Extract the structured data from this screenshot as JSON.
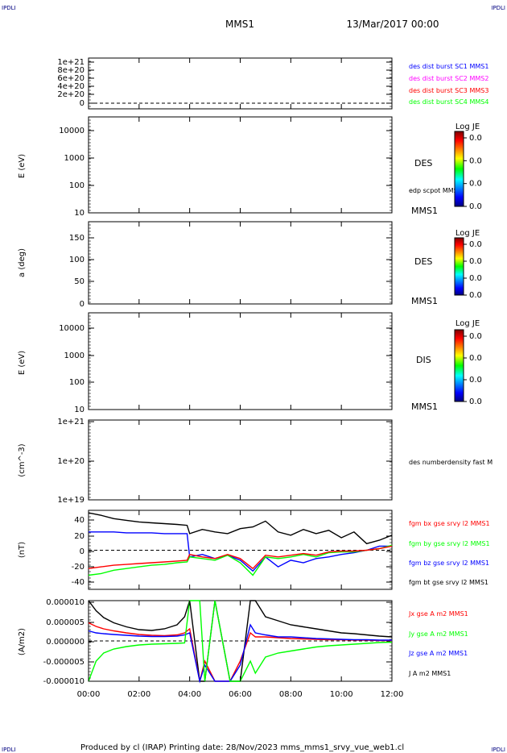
{
  "header": {
    "corner_tl": "IPDLI",
    "corner_tr": "IPDLI",
    "corner_bl": "IPDLI",
    "corner_br": "IPDLI",
    "spacecraft": "MMS1",
    "date": "13/Mar/2017 00:00"
  },
  "footer": {
    "text": "Produced by cl (IRAP)   Printing date: 28/Nov/2023   mms_mms1_srvy_vue_web1.cl"
  },
  "colors": {
    "black": "#000000",
    "blue": "#0000ff",
    "magenta": "#ff00ff",
    "red": "#ff0000",
    "green": "#00ff00",
    "navy": "#000080"
  },
  "colorbars": [
    {
      "title": "Log JE",
      "ticks": [
        "0.0",
        "0.0",
        "0.0",
        "0.0"
      ]
    },
    {
      "title": "Log JE",
      "ticks": [
        "0.0",
        "0.0",
        "0.0",
        "0.0"
      ]
    },
    {
      "title": "Log JE",
      "ticks": [
        "0.0",
        "0.0",
        "0.0",
        "0.0"
      ]
    }
  ],
  "chart_data": {
    "type": "line",
    "x_ticks": [
      "00:00",
      "02:00",
      "04:00",
      "06:00",
      "08:00",
      "10:00",
      "12:00"
    ],
    "x_range_hours": [
      0,
      12
    ],
    "panels": [
      {
        "ylabel": "",
        "y_ticks": [
          "1e+21",
          "8e+20",
          "6e+20",
          "4e+20",
          "2e+20",
          "0"
        ],
        "reference_line": 0,
        "legend": [
          {
            "text": "des dist burst SC1 MMS1",
            "color": "#0000ff"
          },
          {
            "text": "des dist burst SC2 MMS2",
            "color": "#ff00ff"
          },
          {
            "text": "des dist burst SC3 MMS3",
            "color": "#ff0000"
          },
          {
            "text": "des dist burst SC4 MMS4",
            "color": "#00ff00"
          }
        ]
      },
      {
        "ylabel": "E (eV)",
        "y_ticks": [
          "10000",
          "1000",
          "100",
          "10"
        ],
        "y_scale": "log",
        "legend": [
          {
            "text": "DES",
            "color": "#000000"
          },
          {
            "text": "edp scpot MMS1",
            "color": "#000000"
          },
          {
            "text": "MMS1",
            "color": "#000000"
          }
        ]
      },
      {
        "ylabel": "a (deg)",
        "y_ticks": [
          "150",
          "100",
          "50",
          "0"
        ],
        "y_range": [
          0,
          180
        ],
        "legend": [
          {
            "text": "DES",
            "color": "#000000"
          },
          {
            "text": "MMS1",
            "color": "#000000"
          }
        ]
      },
      {
        "ylabel": "E (eV)",
        "y_ticks": [
          "10000",
          "1000",
          "100",
          "10"
        ],
        "y_scale": "log",
        "legend": [
          {
            "text": "DIS",
            "color": "#000000"
          },
          {
            "text": "MMS1",
            "color": "#000000"
          }
        ]
      },
      {
        "ylabel": "(cm^-3)",
        "y_ticks": [
          "1e+21",
          "1e+20",
          "1e+19"
        ],
        "y_scale": "log",
        "legend": [
          {
            "text": "des numberdensity fast M",
            "color": "#000000"
          }
        ]
      },
      {
        "ylabel": "(nT)",
        "y_ticks": [
          "40",
          "20",
          "0",
          "-20",
          "-40"
        ],
        "y_range": [
          -47,
          48
        ],
        "reference_line": 0,
        "legend": [
          {
            "text": "fgm bx gse srvy l2 MMS1",
            "color": "#ff0000"
          },
          {
            "text": "fgm by gse srvy l2 MMS1",
            "color": "#00ff00"
          },
          {
            "text": "fgm bz gse srvy l2 MMS1",
            "color": "#0000ff"
          },
          {
            "text": "fgm bt gse srvy l2 MMS1",
            "color": "#000000"
          }
        ]
      },
      {
        "ylabel": "(A/m2)",
        "y_ticks": [
          "0.000010",
          "0.000005",
          "0.000000",
          "-0.000005",
          "-0.000010"
        ],
        "y_range": [
          -1e-05,
          1e-05
        ],
        "reference_line": 0,
        "legend": [
          {
            "text": "Jx gse A m2 MMS1",
            "color": "#ff0000"
          },
          {
            "text": "Jy gse A m2 MMS1",
            "color": "#00ff00"
          },
          {
            "text": "Jz gse A m2 MMS1",
            "color": "#0000ff"
          },
          {
            "text": "J A m2 MMS1",
            "color": "#000000"
          }
        ]
      }
    ],
    "fgm_series": [
      {
        "name": "fgm bt gse srvy l2 MMS1",
        "color": "#000000",
        "x": [
          0,
          0.5,
          1,
          1.5,
          2,
          2.5,
          3,
          3.5,
          3.9,
          4.0,
          4.5,
          5,
          5.5,
          6,
          6.5,
          7,
          7.5,
          8,
          8.5,
          9,
          9.5,
          10,
          10.5,
          11,
          11.5,
          12
        ],
        "y": [
          45,
          42,
          38,
          36,
          34,
          33,
          32,
          31,
          30,
          20,
          25,
          22,
          20,
          26,
          28,
          35,
          22,
          18,
          25,
          20,
          24,
          15,
          22,
          8,
          12,
          18
        ]
      },
      {
        "name": "fgm bz gse srvy l2 MMS1",
        "color": "#0000ff",
        "x": [
          0,
          0.5,
          1,
          1.5,
          2,
          2.5,
          3,
          3.5,
          3.9,
          4.0,
          4.5,
          5,
          5.5,
          6,
          6.5,
          7,
          7.5,
          8,
          8.5,
          9,
          9.5,
          10,
          10.5,
          11,
          11.5,
          12
        ],
        "y": [
          22,
          22,
          22,
          21,
          21,
          21,
          20,
          20,
          20,
          -8,
          -5,
          -10,
          -6,
          -12,
          -25,
          -8,
          -20,
          -12,
          -15,
          -10,
          -8,
          -5,
          -3,
          0,
          5,
          5
        ]
      },
      {
        "name": "fgm by gse srvy l2 MMS1",
        "color": "#00ff00",
        "x": [
          0,
          0.5,
          1,
          1.5,
          2,
          2.5,
          3,
          3.5,
          3.9,
          4.0,
          4.5,
          5,
          5.5,
          6,
          6.5,
          7,
          7.5,
          8,
          8.5,
          9,
          9.5,
          10,
          10.5,
          11,
          11.5,
          12
        ],
        "y": [
          -30,
          -28,
          -24,
          -22,
          -20,
          -18,
          -17,
          -15,
          -14,
          -8,
          -10,
          -12,
          -6,
          -15,
          -30,
          -8,
          -10,
          -8,
          -5,
          -8,
          -3,
          -2,
          -2,
          0,
          2,
          6
        ]
      },
      {
        "name": "fgm bx gse srvy l2 MMS1",
        "color": "#ff0000",
        "x": [
          0,
          0.5,
          1,
          1.5,
          2,
          2.5,
          3,
          3.5,
          3.9,
          4.0,
          4.5,
          5,
          5.5,
          6,
          6.5,
          7,
          7.5,
          8,
          8.5,
          9,
          9.5,
          10,
          10.5,
          11,
          11.5,
          12
        ],
        "y": [
          -22,
          -20,
          -18,
          -17,
          -16,
          -15,
          -14,
          -13,
          -12,
          -5,
          -8,
          -10,
          -5,
          -10,
          -22,
          -6,
          -8,
          -6,
          -4,
          -6,
          -2,
          -1,
          -1,
          0,
          2,
          5
        ]
      }
    ],
    "current_series": [
      {
        "name": "J A m2 MMS1",
        "color": "#000000",
        "x": [
          0,
          0.3,
          0.6,
          1,
          1.5,
          2,
          2.5,
          3,
          3.5,
          3.8,
          4.0,
          4.4,
          4.6,
          5.0,
          5.6,
          6.0,
          6.4,
          6.6,
          7,
          7.5,
          8,
          8.5,
          9,
          9.5,
          10,
          10.5,
          11,
          11.5,
          12
        ],
        "y": [
          1e-05,
          7.5e-06,
          5.8e-06,
          4.5e-06,
          3.5e-06,
          2.8e-06,
          2.6e-06,
          3e-06,
          4e-06,
          6e-06,
          1e-05,
          -1e-05,
          -1e-05,
          1e-05,
          -1e-05,
          -1e-05,
          1e-05,
          1e-05,
          6e-06,
          5e-06,
          4e-06,
          3.5e-06,
          3e-06,
          2.5e-06,
          2e-06,
          1.8e-06,
          1.5e-06,
          1.2e-06,
          1e-06
        ]
      },
      {
        "name": "Jx gse A m2 MMS1",
        "color": "#ff0000",
        "x": [
          0,
          0.3,
          0.6,
          1,
          1.5,
          2,
          2.5,
          3,
          3.5,
          3.8,
          4.0,
          4.4,
          4.6,
          5.0,
          5.6,
          6.0,
          6.4,
          6.6,
          7,
          7.5,
          8,
          8.5,
          9,
          9.5,
          10,
          10.5,
          11,
          11.5,
          12
        ],
        "y": [
          4.5e-06,
          3.6e-06,
          3e-06,
          2.5e-06,
          2e-06,
          1.6e-06,
          1.4e-06,
          1.3e-06,
          1.5e-06,
          2e-06,
          3e-06,
          -1e-05,
          -5e-06,
          -1e-05,
          -1e-05,
          -5e-06,
          2e-06,
          1e-06,
          1e-06,
          8e-07,
          6e-07,
          5e-07,
          4e-07,
          3e-07,
          3e-07,
          2e-07,
          2e-07,
          1e-07,
          1e-07
        ]
      },
      {
        "name": "Jz gse A m2 MMS1",
        "color": "#0000ff",
        "x": [
          0,
          0.3,
          0.6,
          1,
          1.5,
          2,
          2.5,
          3,
          3.5,
          3.8,
          4.0,
          4.4,
          4.6,
          5.0,
          5.6,
          6.0,
          6.4,
          6.6,
          7,
          7.5,
          8,
          8.5,
          9,
          9.5,
          10,
          10.5,
          11,
          11.5,
          12
        ],
        "y": [
          2.5e-06,
          2e-06,
          1.8e-06,
          1.6e-06,
          1.4e-06,
          1.2e-06,
          1.1e-06,
          1.1e-06,
          1.2e-06,
          1.5e-06,
          2e-06,
          -1e-05,
          -6e-06,
          -1e-05,
          -1e-05,
          -6e-06,
          4e-06,
          2e-06,
          1.5e-06,
          1e-06,
          1e-06,
          8e-07,
          6e-07,
          5e-07,
          4e-07,
          3e-07,
          3e-07,
          2e-07,
          2e-07
        ]
      },
      {
        "name": "Jy gse A m2 MMS1",
        "color": "#00ff00",
        "x": [
          0,
          0.3,
          0.6,
          1,
          1.5,
          2,
          2.5,
          3,
          3.5,
          3.8,
          4.0,
          4.4,
          4.6,
          5.0,
          5.6,
          6.0,
          6.4,
          6.6,
          7,
          7.5,
          8,
          8.5,
          9,
          9.5,
          10,
          10.5,
          11,
          11.5,
          12
        ],
        "y": [
          -1e-05,
          -5e-06,
          -3e-06,
          -2e-06,
          -1.4e-06,
          -1e-06,
          -8e-07,
          -7e-07,
          -6e-07,
          -5e-07,
          1e-05,
          1e-05,
          -1e-05,
          1e-05,
          -1e-05,
          -1e-05,
          -5e-06,
          -8e-06,
          -4e-06,
          -3e-06,
          -2.5e-06,
          -2e-06,
          -1.5e-06,
          -1.2e-06,
          -1e-06,
          -8e-07,
          -6e-07,
          -4e-07,
          -3e-07
        ]
      }
    ]
  }
}
